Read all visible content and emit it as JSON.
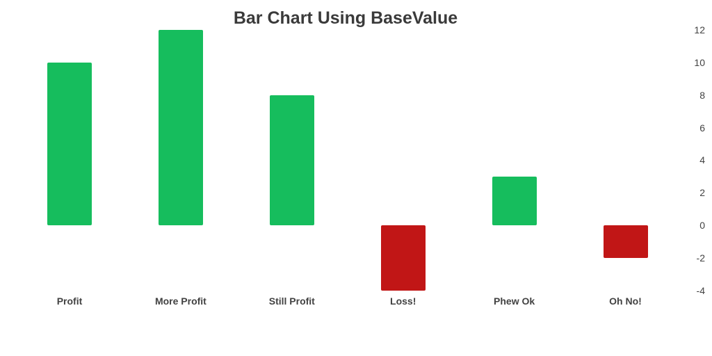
{
  "chart_data": {
    "type": "bar",
    "title": "Bar Chart Using BaseValue",
    "categories": [
      "Profit",
      "More Profit",
      "Still Profit",
      "Loss!",
      "Phew Ok",
      "Oh No!"
    ],
    "values": [
      10,
      12,
      8,
      -4,
      3,
      -2
    ],
    "base_value": 0,
    "y_ticks": [
      12,
      10,
      8,
      6,
      4,
      2,
      0,
      -2,
      -4
    ],
    "ylim": [
      -4.5,
      12.5
    ],
    "y_axis_position": "right",
    "grid": false,
    "legend": false,
    "xlabel": "",
    "ylabel": "",
    "positive_color": "#16bd5d",
    "negative_color": "#c11616",
    "title_color": "#3a3a3a",
    "axis_text_color": "#424242"
  }
}
